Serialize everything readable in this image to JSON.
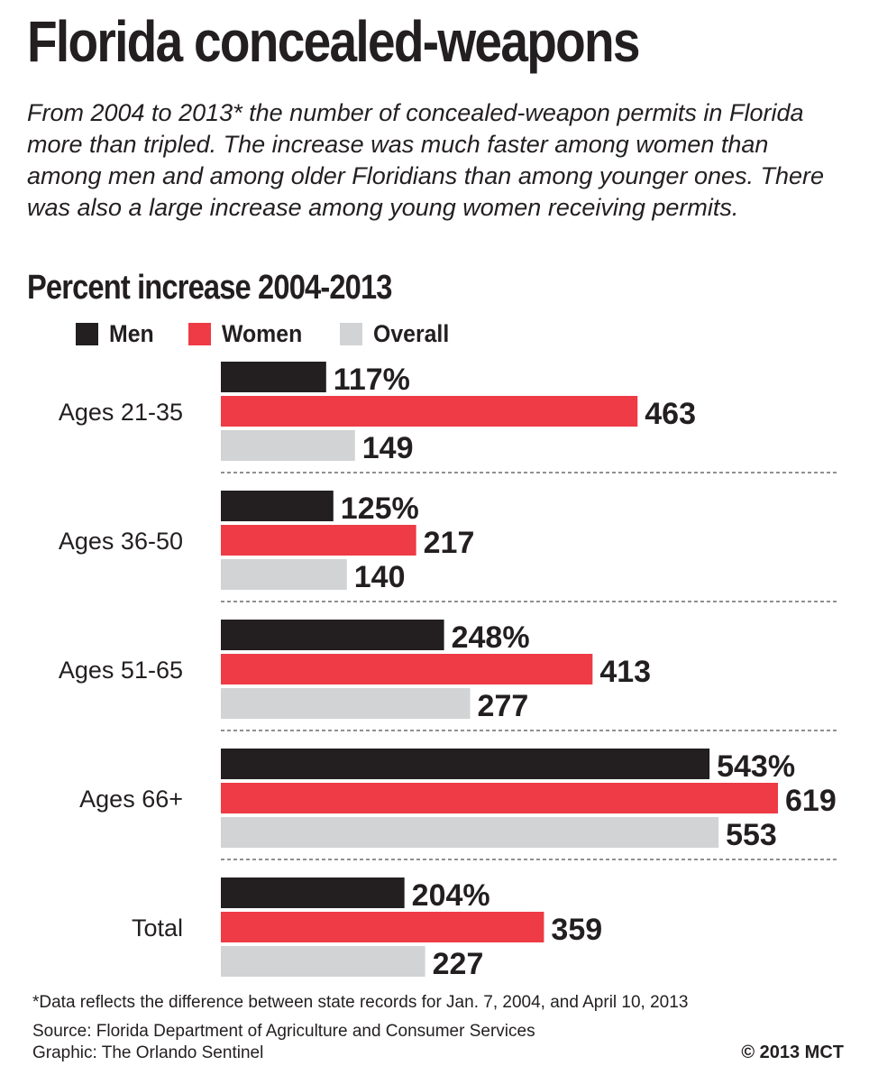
{
  "header": {
    "title": "Florida concealed-weapons",
    "dek": "From 2004 to 2013* the number of concealed-weapon permits in Florida more than tripled. The increase was much faster among women than among men and among older Floridians than among younger ones. There was also a large increase among young women receiving permits."
  },
  "chart_data": {
    "type": "bar",
    "orientation": "horizontal",
    "title": "Percent increase 2004-2013",
    "xlabel": "",
    "ylabel": "",
    "unit": "%",
    "grid": false,
    "legend_position": "top-left",
    "categories": [
      "Ages 21-35",
      "Ages 36-50",
      "Ages 51-65",
      "Ages 66+",
      "Total"
    ],
    "series": [
      {
        "name": "Men",
        "color": "#231f20",
        "values": [
          117,
          125,
          248,
          543,
          204
        ],
        "labels": [
          "117%",
          "125%",
          "248%",
          "543%",
          "204%"
        ]
      },
      {
        "name": "Women",
        "color": "#ee3b45",
        "values": [
          463,
          217,
          413,
          619,
          359
        ],
        "labels": [
          "463",
          "217",
          "413",
          "619",
          "359"
        ]
      },
      {
        "name": "Overall",
        "color": "#d1d3d4",
        "values": [
          149,
          140,
          277,
          553,
          227
        ],
        "labels": [
          "149",
          "140",
          "277",
          "553",
          "227"
        ]
      }
    ],
    "xlim": [
      0,
      619
    ]
  },
  "footer": {
    "footnote": "*Data reflects the difference between state records for Jan. 7, 2004, and April 10, 2013",
    "source": "Source: Florida Department of Agriculture and Consumer Services",
    "graphic": "Graphic: The Orlando Sentinel",
    "credit": "© 2013 MCT"
  }
}
